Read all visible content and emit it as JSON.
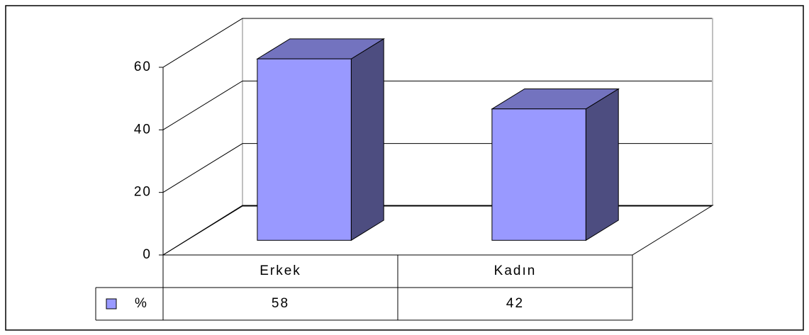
{
  "chart_data": {
    "type": "bar",
    "categories": [
      "Erkek",
      "Kadın"
    ],
    "series": [
      {
        "name": "%",
        "color": "#9999ff",
        "values": [
          58,
          42
        ]
      }
    ],
    "ylim": [
      0,
      60
    ],
    "yticks": [
      0,
      20,
      40,
      60
    ],
    "grid": true
  }
}
